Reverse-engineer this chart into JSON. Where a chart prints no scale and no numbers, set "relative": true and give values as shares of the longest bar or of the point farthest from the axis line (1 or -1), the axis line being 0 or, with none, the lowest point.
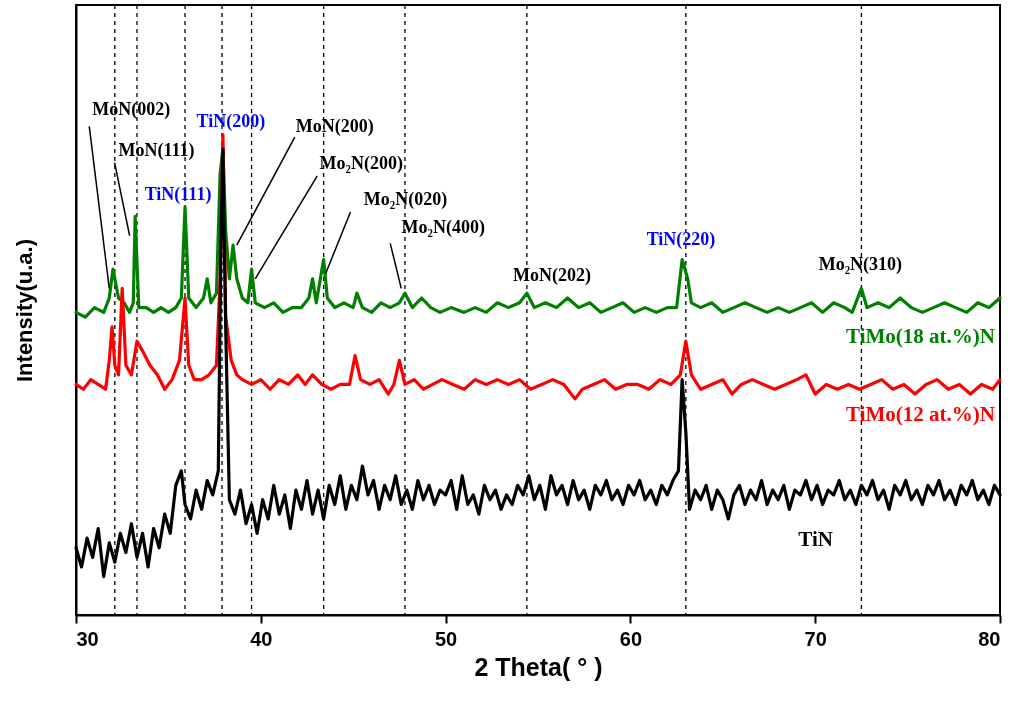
{
  "chart_data": {
    "type": "line",
    "xlabel": "2 Theta( ° )",
    "ylabel": "Intensity(u.a.)",
    "relative": true,
    "xlim": [
      30,
      80
    ],
    "xticks": [
      30,
      40,
      50,
      60,
      70,
      80
    ],
    "grid": false,
    "line_style": "solid",
    "marker": "none",
    "series": [
      {
        "name": "TiMo(18 at.%)N",
        "color": "#008000",
        "x": [
          30,
          30.5,
          31,
          31.5,
          31.8,
          32.0,
          32.3,
          32.6,
          32.9,
          33.1,
          33.2,
          33.4,
          33.8,
          34.2,
          34.6,
          35.0,
          35.4,
          35.7,
          35.9,
          36.1,
          36.5,
          36.9,
          37.1,
          37.3,
          37.6,
          37.8,
          37.95,
          38.1,
          38.3,
          38.5,
          38.7,
          39.0,
          39.3,
          39.5,
          39.7,
          40.2,
          40.7,
          41.2,
          41.7,
          42.2,
          42.6,
          42.8,
          43.0,
          43.4,
          43.6,
          44.0,
          44.5,
          45.0,
          45.2,
          45.5,
          46.0,
          46.5,
          47.0,
          47.5,
          47.8,
          48.2,
          48.7,
          49.2,
          49.7,
          50.3,
          51.0,
          51.6,
          52.2,
          52.8,
          53.4,
          54.0,
          54.4,
          54.8,
          55.4,
          56.0,
          56.6,
          57.2,
          57.8,
          58.4,
          59.0,
          59.6,
          60.2,
          60.8,
          61.4,
          62.0,
          62.5,
          62.8,
          63.1,
          63.3,
          63.8,
          64.4,
          65.0,
          65.6,
          66.2,
          66.8,
          67.4,
          68.0,
          68.6,
          69.2,
          69.8,
          70.4,
          71.0,
          71.6,
          72.0,
          72.5,
          72.8,
          73.4,
          74.0,
          74.6,
          75.2,
          75.8,
          76.4,
          77.0,
          77.6,
          78.2,
          78.8,
          79.4,
          80
        ],
        "values": [
          0.63,
          0.62,
          0.64,
          0.63,
          0.66,
          0.72,
          0.66,
          0.65,
          0.63,
          0.65,
          0.83,
          0.64,
          0.64,
          0.63,
          0.64,
          0.63,
          0.64,
          0.66,
          0.85,
          0.66,
          0.64,
          0.66,
          0.7,
          0.65,
          0.67,
          0.92,
          0.97,
          0.8,
          0.7,
          0.77,
          0.7,
          0.66,
          0.65,
          0.72,
          0.65,
          0.64,
          0.65,
          0.63,
          0.64,
          0.64,
          0.66,
          0.7,
          0.65,
          0.74,
          0.66,
          0.64,
          0.65,
          0.64,
          0.67,
          0.64,
          0.63,
          0.65,
          0.64,
          0.65,
          0.67,
          0.64,
          0.66,
          0.64,
          0.63,
          0.64,
          0.63,
          0.64,
          0.63,
          0.65,
          0.64,
          0.65,
          0.67,
          0.64,
          0.65,
          0.64,
          0.66,
          0.64,
          0.65,
          0.63,
          0.64,
          0.65,
          0.63,
          0.64,
          0.63,
          0.64,
          0.64,
          0.74,
          0.7,
          0.65,
          0.64,
          0.65,
          0.63,
          0.64,
          0.65,
          0.64,
          0.63,
          0.64,
          0.63,
          0.64,
          0.65,
          0.63,
          0.65,
          0.64,
          0.63,
          0.68,
          0.64,
          0.65,
          0.64,
          0.66,
          0.64,
          0.63,
          0.64,
          0.65,
          0.64,
          0.63,
          0.65,
          0.64,
          0.66
        ]
      },
      {
        "name": "TiMo(12 at.%)N",
        "color": "#ff0000",
        "x": [
          30,
          30.4,
          30.8,
          31.2,
          31.6,
          31.8,
          31.95,
          32.1,
          32.3,
          32.5,
          32.7,
          33.0,
          33.3,
          33.6,
          34.0,
          34.4,
          34.8,
          35.2,
          35.6,
          35.9,
          36.1,
          36.4,
          36.8,
          37.2,
          37.6,
          37.8,
          37.95,
          38.1,
          38.4,
          38.7,
          39.0,
          39.5,
          40.0,
          40.5,
          41.0,
          41.5,
          42.0,
          42.4,
          42.8,
          43.3,
          43.8,
          44.3,
          44.8,
          45.1,
          45.4,
          45.9,
          46.4,
          46.9,
          47.2,
          47.5,
          47.8,
          48.3,
          48.8,
          49.3,
          49.8,
          50.4,
          51.0,
          51.6,
          52.2,
          52.8,
          53.4,
          54.0,
          54.6,
          55.2,
          55.8,
          56.4,
          57.0,
          57.4,
          58.0,
          58.6,
          59.2,
          59.8,
          60.4,
          61.0,
          61.6,
          62.2,
          62.7,
          63.0,
          63.3,
          63.8,
          64.4,
          65.0,
          65.5,
          66.0,
          66.6,
          67.2,
          67.8,
          68.4,
          69.0,
          69.5,
          70.0,
          70.6,
          71.2,
          71.8,
          72.4,
          73.0,
          73.6,
          74.2,
          74.8,
          75.4,
          76.0,
          76.6,
          77.2,
          77.8,
          78.4,
          79.0,
          79.6,
          80
        ],
        "values": [
          0.48,
          0.47,
          0.49,
          0.48,
          0.47,
          0.53,
          0.6,
          0.52,
          0.5,
          0.68,
          0.52,
          0.5,
          0.57,
          0.55,
          0.52,
          0.5,
          0.47,
          0.49,
          0.53,
          0.66,
          0.52,
          0.49,
          0.49,
          0.5,
          0.52,
          0.7,
          1,
          0.62,
          0.53,
          0.5,
          0.49,
          0.48,
          0.49,
          0.47,
          0.49,
          0.48,
          0.5,
          0.48,
          0.5,
          0.48,
          0.47,
          0.48,
          0.48,
          0.54,
          0.49,
          0.48,
          0.49,
          0.46,
          0.48,
          0.53,
          0.48,
          0.49,
          0.47,
          0.48,
          0.49,
          0.48,
          0.47,
          0.49,
          0.48,
          0.49,
          0.48,
          0.49,
          0.47,
          0.48,
          0.49,
          0.48,
          0.45,
          0.47,
          0.48,
          0.49,
          0.47,
          0.48,
          0.48,
          0.47,
          0.49,
          0.48,
          0.5,
          0.57,
          0.5,
          0.47,
          0.48,
          0.49,
          0.46,
          0.48,
          0.49,
          0.48,
          0.47,
          0.48,
          0.49,
          0.5,
          0.46,
          0.48,
          0.47,
          0.48,
          0.47,
          0.48,
          0.49,
          0.47,
          0.48,
          0.46,
          0.48,
          0.49,
          0.47,
          0.48,
          0.46,
          0.48,
          0.47,
          0.49
        ]
      },
      {
        "name": "TiN",
        "color": "#000000",
        "x": [
          30,
          30.3,
          30.6,
          30.9,
          31.2,
          31.5,
          31.8,
          32.1,
          32.4,
          32.7,
          33.0,
          33.3,
          33.6,
          33.9,
          34.2,
          34.5,
          34.8,
          35.1,
          35.4,
          35.7,
          35.9,
          36.2,
          36.5,
          36.8,
          37.1,
          37.4,
          37.7,
          37.85,
          37.95,
          38.1,
          38.3,
          38.6,
          38.9,
          39.2,
          39.5,
          39.8,
          40.1,
          40.4,
          40.7,
          41.0,
          41.3,
          41.6,
          41.9,
          42.2,
          42.5,
          42.8,
          43.1,
          43.4,
          43.7,
          44.0,
          44.3,
          44.6,
          44.9,
          45.2,
          45.5,
          45.8,
          46.1,
          46.4,
          46.7,
          47.0,
          47.3,
          47.6,
          47.9,
          48.2,
          48.5,
          48.8,
          49.1,
          49.4,
          49.7,
          50.0,
          50.3,
          50.6,
          50.9,
          51.2,
          51.5,
          51.8,
          52.1,
          52.4,
          52.7,
          53.0,
          53.3,
          53.6,
          53.9,
          54.2,
          54.5,
          54.8,
          55.1,
          55.4,
          55.7,
          56.0,
          56.3,
          56.6,
          56.9,
          57.2,
          57.5,
          57.8,
          58.1,
          58.4,
          58.7,
          59.0,
          59.3,
          59.6,
          59.9,
          60.2,
          60.5,
          60.8,
          61.1,
          61.4,
          61.7,
          62.0,
          62.3,
          62.6,
          62.8,
          63.0,
          63.2,
          63.5,
          63.8,
          64.1,
          64.4,
          64.7,
          65.0,
          65.3,
          65.6,
          65.9,
          66.2,
          66.5,
          66.8,
          67.1,
          67.4,
          67.7,
          68.0,
          68.3,
          68.6,
          68.9,
          69.2,
          69.5,
          69.8,
          70.1,
          70.4,
          70.7,
          71.0,
          71.3,
          71.6,
          71.9,
          72.2,
          72.5,
          72.8,
          73.1,
          73.4,
          73.7,
          74.0,
          74.3,
          74.6,
          74.9,
          75.2,
          75.5,
          75.8,
          76.1,
          76.4,
          76.7,
          77.0,
          77.3,
          77.6,
          77.9,
          78.2,
          78.5,
          78.8,
          79.1,
          79.4,
          79.7,
          80
        ],
        "values": [
          0.14,
          0.1,
          0.16,
          0.12,
          0.18,
          0.08,
          0.15,
          0.11,
          0.17,
          0.13,
          0.19,
          0.12,
          0.17,
          0.1,
          0.18,
          0.14,
          0.21,
          0.17,
          0.27,
          0.3,
          0.23,
          0.2,
          0.26,
          0.22,
          0.28,
          0.25,
          0.3,
          0.8,
          0.97,
          0.6,
          0.24,
          0.21,
          0.26,
          0.19,
          0.23,
          0.17,
          0.24,
          0.2,
          0.27,
          0.21,
          0.25,
          0.18,
          0.26,
          0.22,
          0.28,
          0.21,
          0.26,
          0.2,
          0.27,
          0.23,
          0.29,
          0.22,
          0.27,
          0.24,
          0.31,
          0.25,
          0.28,
          0.22,
          0.27,
          0.24,
          0.29,
          0.23,
          0.26,
          0.22,
          0.28,
          0.24,
          0.27,
          0.23,
          0.26,
          0.25,
          0.28,
          0.22,
          0.29,
          0.23,
          0.25,
          0.21,
          0.27,
          0.24,
          0.26,
          0.22,
          0.25,
          0.23,
          0.27,
          0.25,
          0.29,
          0.24,
          0.27,
          0.22,
          0.29,
          0.25,
          0.27,
          0.23,
          0.28,
          0.24,
          0.26,
          0.22,
          0.27,
          0.25,
          0.28,
          0.24,
          0.26,
          0.23,
          0.27,
          0.25,
          0.28,
          0.24,
          0.26,
          0.23,
          0.27,
          0.25,
          0.28,
          0.3,
          0.49,
          0.38,
          0.22,
          0.26,
          0.24,
          0.27,
          0.22,
          0.26,
          0.24,
          0.2,
          0.25,
          0.27,
          0.23,
          0.26,
          0.24,
          0.28,
          0.23,
          0.26,
          0.24,
          0.27,
          0.22,
          0.26,
          0.25,
          0.28,
          0.24,
          0.27,
          0.23,
          0.26,
          0.25,
          0.28,
          0.24,
          0.26,
          0.23,
          0.27,
          0.25,
          0.28,
          0.24,
          0.26,
          0.22,
          0.27,
          0.25,
          0.28,
          0.24,
          0.26,
          0.23,
          0.27,
          0.25,
          0.28,
          0.24,
          0.26,
          0.23,
          0.27,
          0.25,
          0.28,
          0.24,
          0.26,
          0.23,
          0.27,
          0.25
        ]
      }
    ],
    "ref_lines": [
      {
        "axis": "x",
        "value": 32.1,
        "color": "#000000",
        "line_style": "dashed"
      },
      {
        "axis": "x",
        "value": 33.3,
        "color": "#000000",
        "line_style": "dashed"
      },
      {
        "axis": "x",
        "value": 35.9,
        "color": "#000000",
        "line_style": "dashed"
      },
      {
        "axis": "x",
        "value": 37.9,
        "color": "#000000",
        "line_style": "dashed"
      },
      {
        "axis": "x",
        "value": 39.5,
        "color": "#000000",
        "line_style": "dashed"
      },
      {
        "axis": "x",
        "value": 43.4,
        "color": "#000000",
        "line_style": "dashed"
      },
      {
        "axis": "x",
        "value": 47.8,
        "color": "#000000",
        "line_style": "dashed"
      },
      {
        "axis": "x",
        "value": 54.4,
        "color": "#000000",
        "line_style": "dashed"
      },
      {
        "axis": "x",
        "value": 63.0,
        "color": "#000000",
        "line_style": "dashed"
      },
      {
        "axis": "x",
        "value": 72.5,
        "color": "#000000",
        "line_style": "dashed"
      }
    ],
    "annotations": [
      {
        "text": "MoN(002)",
        "x": 31.8,
        "y": 0.68
      },
      {
        "text": "MoN(111)",
        "x": 32.9,
        "y": 0.79
      },
      {
        "text": "TiN(111)",
        "x": 35.9,
        "y": 0.85
      },
      {
        "text": "TiN(200)",
        "x": 37.95,
        "y": 1
      },
      {
        "text": "MoN(200)",
        "x": 38.7,
        "y": 0.77
      },
      {
        "text": "Mo₂N(200)",
        "x": 39.7,
        "y": 0.7
      },
      {
        "text": "Mo₂N(020)",
        "x": 43.5,
        "y": 0.71
      },
      {
        "text": "Mo₂N(400)",
        "x": 47.6,
        "y": 0.68
      },
      {
        "text": "MoN(202)",
        "x": 54.4,
        "y": 0.67
      },
      {
        "text": "TiN(220)",
        "x": 62.9,
        "y": 0.74
      },
      {
        "text": "Mo₂N(310)",
        "x": 72.5,
        "y": 0.68
      }
    ]
  }
}
